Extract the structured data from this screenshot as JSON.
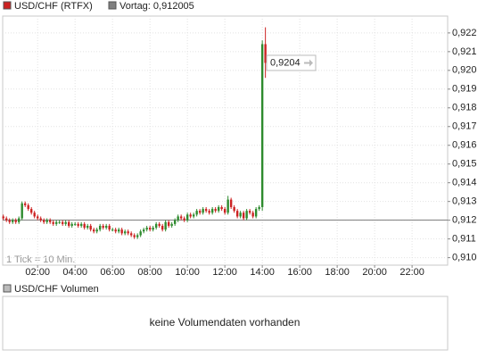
{
  "chart_data": {
    "type": "candlestick",
    "series": [
      {
        "name": "USD/CHF (RTFX)",
        "color": "#cc2222",
        "up_color": "#2e8b2e",
        "down_color": "#cc2222"
      }
    ],
    "reference": {
      "label": "Vortag: 0,912005",
      "value": 0.912005,
      "color": "#808080"
    },
    "last_price": {
      "label": "0,9204",
      "value": 0.9204
    },
    "interval_label": "1 Tick = 10 Min.",
    "x": [
      10,
      20,
      30,
      40,
      50,
      60,
      70,
      80,
      90,
      100,
      110,
      120,
      130,
      140,
      150,
      160,
      170,
      180,
      190,
      200,
      210,
      220,
      230,
      240,
      250,
      260,
      270,
      280,
      290,
      300,
      310,
      320,
      330,
      340,
      350,
      360,
      370,
      380,
      390,
      400,
      410,
      420,
      430,
      440,
      450,
      460,
      470,
      480,
      490,
      500,
      510,
      520,
      530,
      540,
      550,
      560,
      570,
      580,
      590,
      600,
      610,
      620,
      630,
      640,
      650,
      660,
      670,
      680,
      690,
      700,
      710,
      720,
      730,
      740,
      750,
      760,
      770,
      780,
      790,
      800,
      810,
      820,
      830,
      840,
      850
    ],
    "ohlc": [
      [
        0.9122,
        0.9123,
        0.912,
        0.9121
      ],
      [
        0.9121,
        0.9122,
        0.9119,
        0.912
      ],
      [
        0.912,
        0.9121,
        0.9118,
        0.9119
      ],
      [
        0.9119,
        0.9121,
        0.9118,
        0.912
      ],
      [
        0.912,
        0.9121,
        0.9118,
        0.9119
      ],
      [
        0.9119,
        0.9122,
        0.9118,
        0.9121
      ],
      [
        0.9121,
        0.913,
        0.912,
        0.9129
      ],
      [
        0.9129,
        0.913,
        0.9127,
        0.9128
      ],
      [
        0.9128,
        0.9129,
        0.9125,
        0.9126
      ],
      [
        0.9126,
        0.9127,
        0.9123,
        0.9124
      ],
      [
        0.9124,
        0.9125,
        0.9121,
        0.9122
      ],
      [
        0.9122,
        0.9123,
        0.912,
        0.9121
      ],
      [
        0.9121,
        0.9122,
        0.9119,
        0.912
      ],
      [
        0.912,
        0.9121,
        0.9118,
        0.9119
      ],
      [
        0.9119,
        0.9121,
        0.9118,
        0.912
      ],
      [
        0.912,
        0.9121,
        0.9118,
        0.9119
      ],
      [
        0.9119,
        0.912,
        0.9117,
        0.9118
      ],
      [
        0.9118,
        0.912,
        0.9117,
        0.9119
      ],
      [
        0.9119,
        0.912,
        0.9118,
        0.9119
      ],
      [
        0.9119,
        0.912,
        0.9117,
        0.9118
      ],
      [
        0.9118,
        0.912,
        0.9117,
        0.9119
      ],
      [
        0.9119,
        0.912,
        0.9116,
        0.9117
      ],
      [
        0.9117,
        0.9119,
        0.9116,
        0.9118
      ],
      [
        0.9118,
        0.9119,
        0.9117,
        0.9118
      ],
      [
        0.9118,
        0.9119,
        0.9116,
        0.9117
      ],
      [
        0.9117,
        0.9119,
        0.9116,
        0.9118
      ],
      [
        0.9118,
        0.9119,
        0.9115,
        0.9116
      ],
      [
        0.9116,
        0.9118,
        0.9115,
        0.9117
      ],
      [
        0.9117,
        0.9118,
        0.9114,
        0.9115
      ],
      [
        0.9115,
        0.9116,
        0.9113,
        0.9114
      ],
      [
        0.9114,
        0.9116,
        0.9113,
        0.9115
      ],
      [
        0.9115,
        0.9118,
        0.9114,
        0.9117
      ],
      [
        0.9117,
        0.9118,
        0.9115,
        0.9116
      ],
      [
        0.9116,
        0.9118,
        0.9115,
        0.9117
      ],
      [
        0.9117,
        0.9118,
        0.9114,
        0.9115
      ],
      [
        0.9115,
        0.9116,
        0.9114,
        0.9115
      ],
      [
        0.9115,
        0.9116,
        0.9113,
        0.9114
      ],
      [
        0.9114,
        0.9116,
        0.9113,
        0.9115
      ],
      [
        0.9115,
        0.9116,
        0.9112,
        0.9113
      ],
      [
        0.9113,
        0.9115,
        0.9112,
        0.9114
      ],
      [
        0.9114,
        0.9115,
        0.9112,
        0.9113
      ],
      [
        0.9113,
        0.9114,
        0.9111,
        0.9112
      ],
      [
        0.9112,
        0.9113,
        0.911,
        0.9111
      ],
      [
        0.9111,
        0.9113,
        0.911,
        0.9112
      ],
      [
        0.9112,
        0.9115,
        0.9111,
        0.9114
      ],
      [
        0.9114,
        0.9116,
        0.9113,
        0.9115
      ],
      [
        0.9115,
        0.9117,
        0.9114,
        0.9116
      ],
      [
        0.9116,
        0.9117,
        0.9114,
        0.9115
      ],
      [
        0.9115,
        0.9117,
        0.9114,
        0.9116
      ],
      [
        0.9116,
        0.9119,
        0.9115,
        0.9118
      ],
      [
        0.9118,
        0.9119,
        0.9116,
        0.9117
      ],
      [
        0.9117,
        0.9118,
        0.9114,
        0.9115
      ],
      [
        0.9115,
        0.912,
        0.9114,
        0.9119
      ],
      [
        0.9119,
        0.912,
        0.9116,
        0.9117
      ],
      [
        0.9117,
        0.9119,
        0.9116,
        0.9118
      ],
      [
        0.9118,
        0.9121,
        0.9117,
        0.912
      ],
      [
        0.912,
        0.9123,
        0.9119,
        0.9122
      ],
      [
        0.9122,
        0.9123,
        0.912,
        0.9121
      ],
      [
        0.9121,
        0.9122,
        0.9119,
        0.912
      ],
      [
        0.912,
        0.9124,
        0.9119,
        0.9123
      ],
      [
        0.9123,
        0.9124,
        0.9121,
        0.9122
      ],
      [
        0.9122,
        0.9124,
        0.9121,
        0.9123
      ],
      [
        0.9123,
        0.9126,
        0.9122,
        0.9125
      ],
      [
        0.9125,
        0.9126,
        0.9123,
        0.9124
      ],
      [
        0.9124,
        0.9127,
        0.9123,
        0.9126
      ],
      [
        0.9126,
        0.9127,
        0.9124,
        0.9125
      ],
      [
        0.9125,
        0.9126,
        0.9123,
        0.9124
      ],
      [
        0.9124,
        0.9127,
        0.9123,
        0.9126
      ],
      [
        0.9126,
        0.9127,
        0.9124,
        0.9125
      ],
      [
        0.9125,
        0.9128,
        0.9124,
        0.9127
      ],
      [
        0.9127,
        0.9128,
        0.9125,
        0.9126
      ],
      [
        0.9126,
        0.9127,
        0.9123,
        0.9124
      ],
      [
        0.9124,
        0.9133,
        0.9123,
        0.9131
      ],
      [
        0.9131,
        0.9132,
        0.9126,
        0.9127
      ],
      [
        0.9127,
        0.9128,
        0.9124,
        0.9125
      ],
      [
        0.9125,
        0.9126,
        0.9121,
        0.9122
      ],
      [
        0.9122,
        0.9125,
        0.9121,
        0.9124
      ],
      [
        0.9124,
        0.9125,
        0.912,
        0.9121
      ],
      [
        0.9121,
        0.9126,
        0.912,
        0.9125
      ],
      [
        0.9125,
        0.9126,
        0.9123,
        0.9124
      ],
      [
        0.9124,
        0.9125,
        0.9121,
        0.9122
      ],
      [
        0.9122,
        0.9127,
        0.9121,
        0.9126
      ],
      [
        0.9126,
        0.9128,
        0.9125,
        0.9127
      ],
      [
        0.9127,
        0.9216,
        0.9125,
        0.9214
      ],
      [
        0.9214,
        0.9223,
        0.9196,
        0.9204
      ]
    ],
    "xlim": [
      8,
      1434
    ],
    "xticks": [
      {
        "value": 120,
        "label": "02:00"
      },
      {
        "value": 240,
        "label": "04:00"
      },
      {
        "value": 360,
        "label": "06:00"
      },
      {
        "value": 480,
        "label": "08:00"
      },
      {
        "value": 600,
        "label": "10:00"
      },
      {
        "value": 720,
        "label": "12:00"
      },
      {
        "value": 840,
        "label": "14:00"
      },
      {
        "value": 960,
        "label": "16:00"
      },
      {
        "value": 1080,
        "label": "18:00"
      },
      {
        "value": 1200,
        "label": "20:00"
      },
      {
        "value": 1320,
        "label": "22:00"
      }
    ],
    "ylim": [
      0.9096,
      0.9229
    ],
    "yticks": [
      {
        "value": 0.91,
        "label": "0,910"
      },
      {
        "value": 0.911,
        "label": "0,911"
      },
      {
        "value": 0.912,
        "label": "0,912"
      },
      {
        "value": 0.913,
        "label": "0,913"
      },
      {
        "value": 0.914,
        "label": "0,914"
      },
      {
        "value": 0.915,
        "label": "0,915"
      },
      {
        "value": 0.916,
        "label": "0,916"
      },
      {
        "value": 0.917,
        "label": "0,917"
      },
      {
        "value": 0.918,
        "label": "0,918"
      },
      {
        "value": 0.919,
        "label": "0,919"
      },
      {
        "value": 0.92,
        "label": "0,920"
      },
      {
        "value": 0.921,
        "label": "0,921"
      },
      {
        "value": 0.922,
        "label": "0,922"
      }
    ],
    "grid": true
  },
  "volume_panel": {
    "title": "USD/CHF Volumen",
    "message": "keine Volumendaten vorhanden"
  }
}
